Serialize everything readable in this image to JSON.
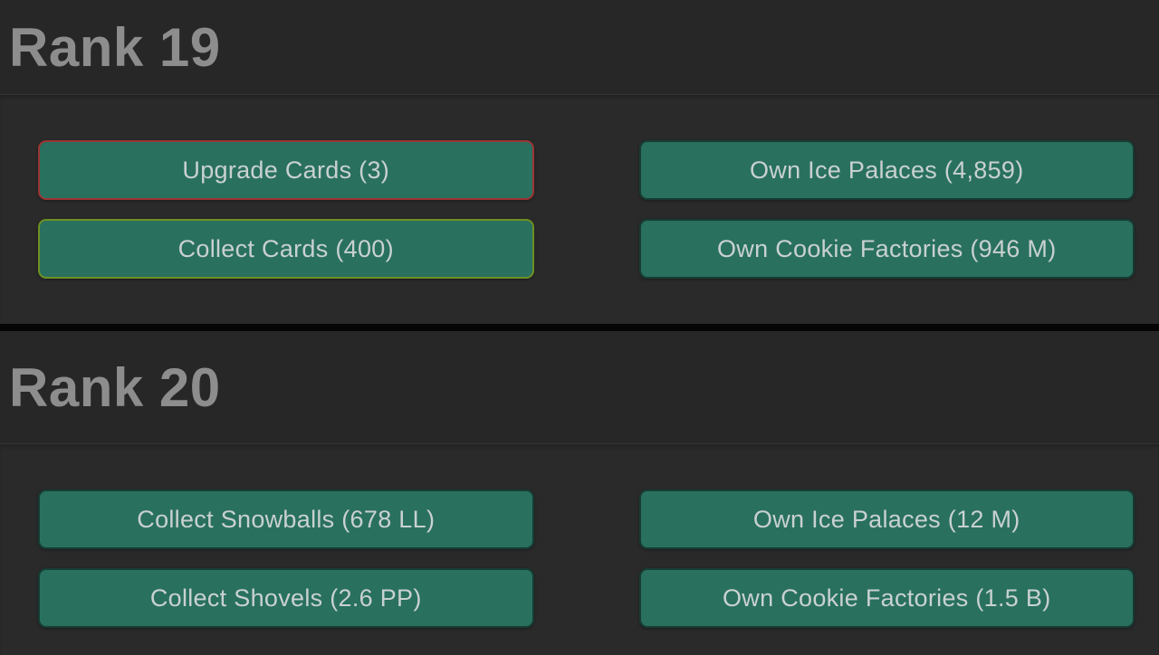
{
  "panel": {
    "sections": [
      {
        "title": "Rank 19",
        "quests": [
          {
            "label": "Upgrade Cards (3)",
            "highlight": "red",
            "border_color": "#9b3434"
          },
          {
            "label": "Collect Cards (400)",
            "highlight": "green",
            "border_color": "#6f9023"
          },
          {
            "label": "Own Ice Palaces (4,859)",
            "highlight": "none"
          },
          {
            "label": "Own Cookie Factories (946 M)",
            "highlight": "none"
          }
        ]
      },
      {
        "title": "Rank 20",
        "quests": [
          {
            "label": "Collect Snowballs (678 LL)",
            "highlight": "none"
          },
          {
            "label": "Collect Shovels (2.6 PP)",
            "highlight": "none"
          },
          {
            "label": "Own Ice Palaces (12 M)",
            "highlight": "none"
          },
          {
            "label": "Own Cookie Factories (1.5 B)",
            "highlight": "none"
          }
        ]
      }
    ],
    "colors": {
      "header_background": "#272727",
      "content_background": "#2a2a2a",
      "button_background": "#29705f",
      "button_text": "#c9d1d0",
      "title_text": "#8d8d8d",
      "divider": "#050505",
      "highlight_red_border": "#9b3434",
      "highlight_green_border": "#6f9023"
    }
  }
}
